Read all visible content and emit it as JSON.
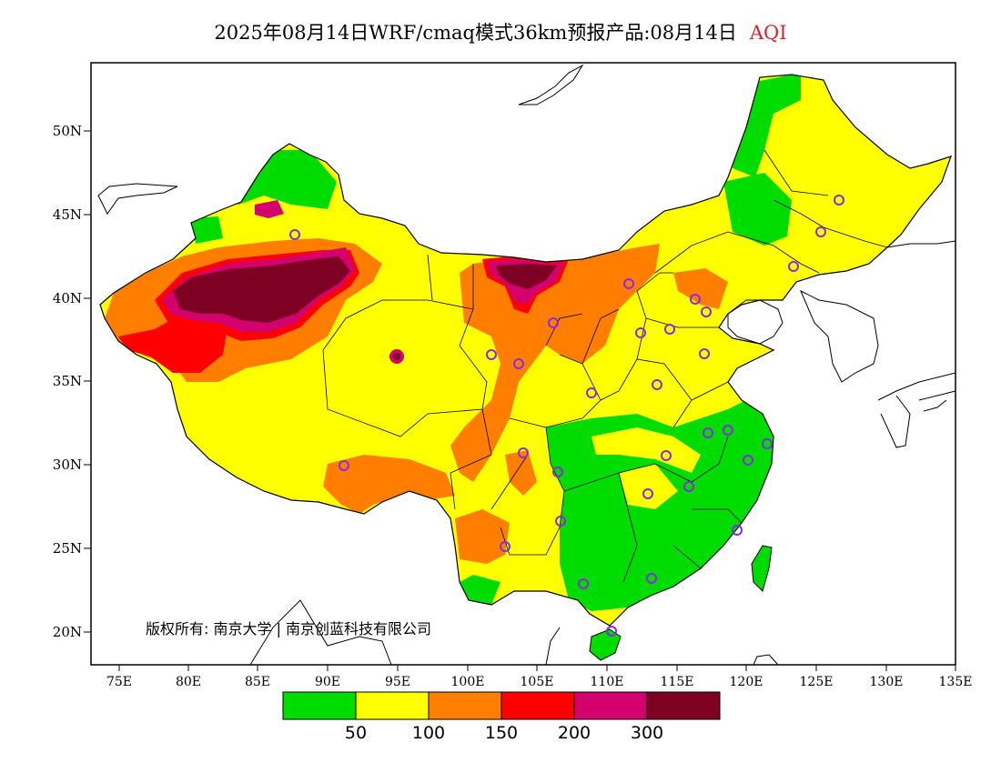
{
  "title": {
    "main": "2025年08月14日WRF/cmaq模式36km预报产品:08月14日",
    "variable": "AQI",
    "variable_color": "#e0202a"
  },
  "copyright": "版权所有: 南京大学 | 南京创蓝科技有限公司",
  "axes": {
    "lat_ticks": [
      "50N",
      "45N",
      "40N",
      "35N",
      "30N",
      "25N",
      "20N"
    ],
    "lon_ticks": [
      "75E",
      "80E",
      "85E",
      "90E",
      "95E",
      "100E",
      "105E",
      "110E",
      "115E",
      "120E",
      "125E",
      "130E",
      "135E"
    ]
  },
  "colorbar": {
    "colors": [
      "#00dc00",
      "#ffff00",
      "#ff7e00",
      "#ff0000",
      "#d4006e",
      "#7e0023"
    ],
    "labels": [
      "50",
      "100",
      "150",
      "200",
      "300"
    ]
  },
  "legend_colors": {
    "good": "#00dc00",
    "moderate": "#ffff00",
    "usg": "#ff7e00",
    "unhealthy": "#ff0000",
    "very_unhealthy": "#d4006e",
    "hazardous": "#7e0023",
    "station_marker": "#8a2be2"
  }
}
